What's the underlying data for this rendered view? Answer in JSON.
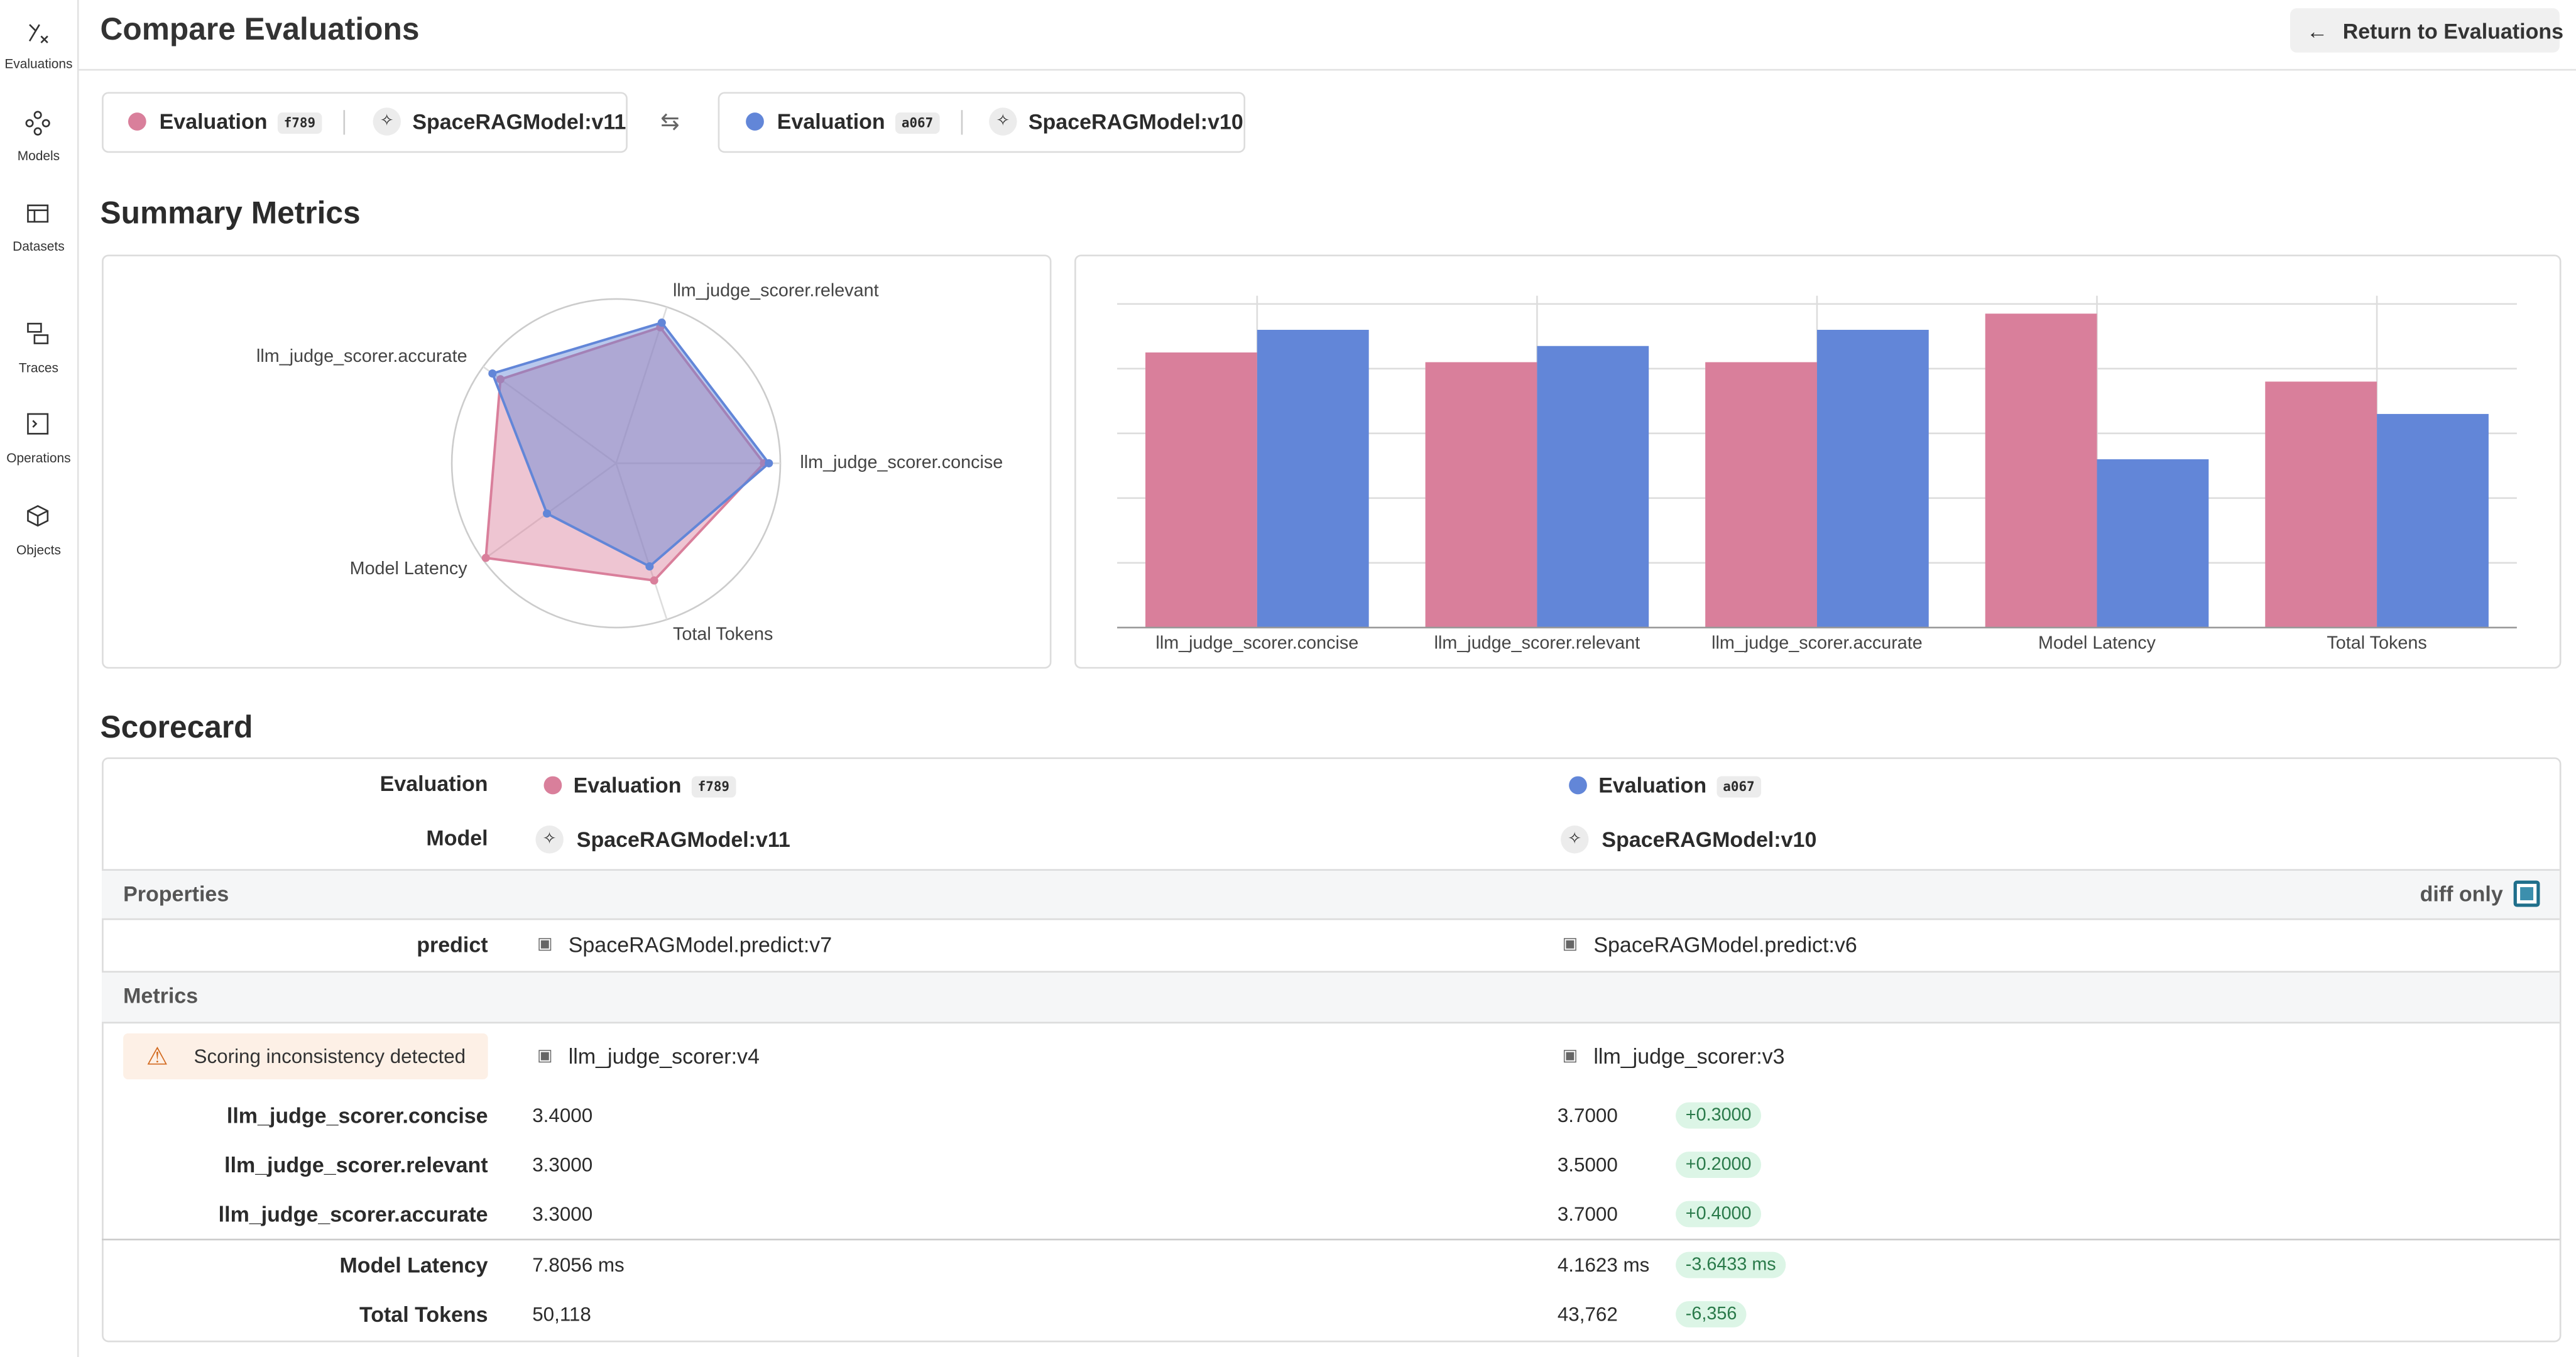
{
  "sidebar": [
    "Evaluations",
    "Models",
    "Datasets",
    "Traces",
    "Operations",
    "Objects"
  ],
  "header": {
    "title": "Compare Evaluations",
    "button": "Return to Evaluations"
  },
  "selection": {
    "a": {
      "label": "Evaluation",
      "id": "f789",
      "model": "SpaceRAGModel:v11"
    },
    "b": {
      "label": "Evaluation",
      "id": "a067",
      "model": "SpaceRAGModel:v10"
    }
  },
  "summary_title": "Summary Metrics",
  "chart_data": [
    {
      "type": "radar",
      "categories": [
        "llm_judge_scorer.concise",
        "Total Tokens",
        "Model Latency",
        "llm_judge_scorer.accurate",
        "llm_judge_scorer.relevant"
      ],
      "rlim": [
        0,
        1
      ],
      "series": [
        {
          "color": "#d97f9b",
          "values": [
            0.9,
            0.75,
            0.98,
            0.87,
            0.87
          ]
        },
        {
          "color": "#6286d8",
          "values": [
            0.93,
            0.66,
            0.52,
            0.93,
            0.9
          ]
        }
      ]
    },
    {
      "type": "bar",
      "categories": [
        "llm_judge_scorer.concise",
        "llm_judge_scorer.relevant",
        "llm_judge_scorer.accurate",
        "Model Latency",
        "Total Tokens"
      ],
      "ylim": [
        0,
        1
      ],
      "gridlines": [
        0.2,
        0.4,
        0.6,
        0.8,
        1
      ],
      "series": [
        {
          "color": "#d97f9b",
          "values": [
            0.85,
            0.82,
            0.82,
            0.97,
            0.76
          ]
        },
        {
          "color": "#6286d8",
          "values": [
            0.92,
            0.87,
            0.92,
            0.52,
            0.66
          ]
        }
      ]
    }
  ],
  "scorecard": {
    "title": "Scorecard",
    "evaluation_label": "Evaluation",
    "model_label": "Model",
    "properties": "Properties",
    "diff_only": "diff only",
    "predict_label": "predict",
    "predict": [
      "SpaceRAGModel.predict:v7",
      "SpaceRAGModel.predict:v6"
    ],
    "metrics": "Metrics",
    "warning": "Scoring inconsistency detected",
    "scorers": [
      "llm_judge_scorer:v4",
      "llm_judge_scorer:v3"
    ],
    "rows": [
      [
        "llm_judge_scorer.concise",
        "3.4000",
        "3.7000",
        "+0.3000"
      ],
      [
        "llm_judge_scorer.relevant",
        "3.3000",
        "3.5000",
        "+0.2000"
      ],
      [
        "llm_judge_scorer.accurate",
        "3.3000",
        "3.7000",
        "+0.4000"
      ],
      [
        "Model Latency",
        "7.8056 ms",
        "4.1623 ms",
        "-3.6433 ms"
      ],
      [
        "Total Tokens",
        "50,118",
        "43,762",
        "-6,356"
      ]
    ]
  }
}
